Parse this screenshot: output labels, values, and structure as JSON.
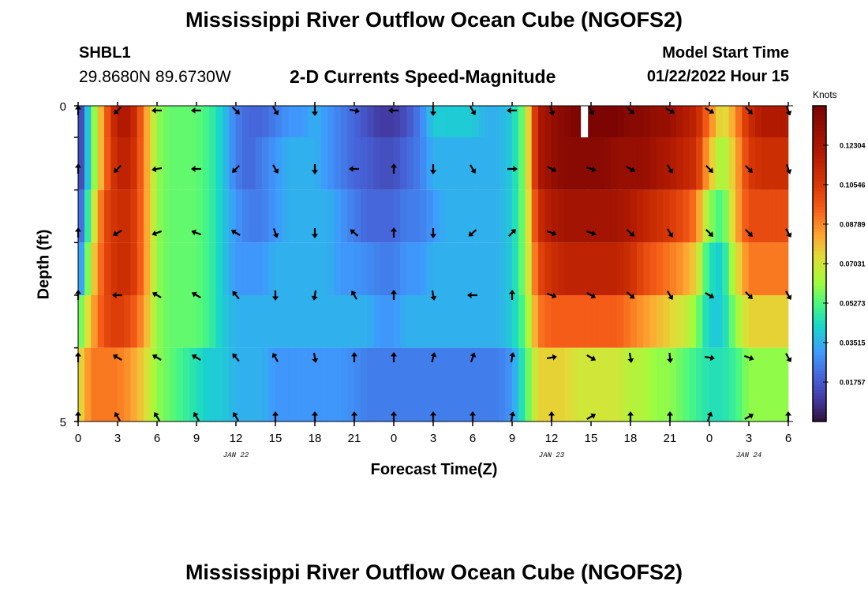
{
  "titles": {
    "top": "Mississippi River Outflow Ocean Cube (NGOFS2)",
    "bottom": "Mississippi River Outflow Ocean Cube (NGOFS2)"
  },
  "station": {
    "name": "SHBL1",
    "coords": "29.8680N  89.6730W"
  },
  "subtitle": "2-D Currents Speed-Magnitude",
  "model": {
    "label": "Model Start Time",
    "time": "01/22/2022 Hour 15"
  },
  "chart_data": {
    "type": "heatmap",
    "title": "2-D Currents Speed-Magnitude",
    "xlabel": "Forecast Time(Z)",
    "ylabel": "Depth (ft)",
    "x_ticks": [
      "0",
      "3",
      "6",
      "9",
      "12",
      "15",
      "18",
      "21",
      "0",
      "3",
      "6",
      "9",
      "12",
      "15",
      "18",
      "21",
      "0",
      "3",
      "6"
    ],
    "x_tick_hours": [
      0,
      3,
      6,
      9,
      12,
      15,
      18,
      21,
      24,
      27,
      30,
      33,
      36,
      39,
      42,
      45,
      48,
      51,
      54
    ],
    "xlim": [
      0,
      54
    ],
    "date_labels": [
      {
        "text": "JAN 22",
        "hour": 12
      },
      {
        "text": "JAN 23",
        "hour": 36
      },
      {
        "text": "JAN 24",
        "hour": 51
      }
    ],
    "y_ticks": [
      "0",
      "5"
    ],
    "ylim": [
      0,
      5
    ],
    "n_layers": 6,
    "colorbar": {
      "unit": "Knots",
      "min": 0,
      "max": 0.1406,
      "tick_labels": [
        "0.12304",
        "0.10546",
        "0.08789",
        "0.07031",
        "0.05273",
        "0.03515",
        "0.01757"
      ],
      "tick_values": [
        0.12304,
        0.10546,
        0.08789,
        0.07031,
        0.05273,
        0.03515,
        0.01757
      ]
    },
    "profiles": {
      "hours": [
        0,
        1,
        2,
        3,
        4,
        5,
        6,
        7,
        8,
        9,
        10,
        11,
        12,
        13,
        14,
        15,
        16,
        17,
        18,
        19,
        20,
        21,
        22,
        23,
        24,
        25,
        26,
        27,
        28,
        29,
        30,
        31,
        32,
        33,
        34,
        35,
        36,
        37,
        38,
        39,
        40,
        41,
        42,
        43,
        44,
        45,
        46,
        47,
        48,
        49,
        50,
        51,
        52,
        53,
        54
      ],
      "layers": [
        [
          0.003,
          0.05,
          0.09,
          0.12,
          0.12,
          0.09,
          0.06,
          0.055,
          0.055,
          0.055,
          0.05,
          0.04,
          0.025,
          0.02,
          0.02,
          0.025,
          0.03,
          0.03,
          0.035,
          0.03,
          0.025,
          0.02,
          0.015,
          0.01,
          0.01,
          0.015,
          0.025,
          0.04,
          0.04,
          0.04,
          0.04,
          0.035,
          0.035,
          0.04,
          0.06,
          0.12,
          0.13,
          0.135,
          0.14,
          0.14,
          0.14,
          0.14,
          0.135,
          0.135,
          0.13,
          0.13,
          0.12,
          0.115,
          0.09,
          0.07,
          0.085,
          0.11,
          0.12,
          0.12,
          0.12
        ],
        [
          0.003,
          0.05,
          0.09,
          0.115,
          0.115,
          0.09,
          0.06,
          0.055,
          0.055,
          0.055,
          0.05,
          0.04,
          0.025,
          0.02,
          0.025,
          0.03,
          0.035,
          0.035,
          0.035,
          0.03,
          0.025,
          0.02,
          0.018,
          0.015,
          0.015,
          0.02,
          0.025,
          0.035,
          0.035,
          0.035,
          0.035,
          0.035,
          0.035,
          0.04,
          0.06,
          0.12,
          0.13,
          0.135,
          0.135,
          0.135,
          0.135,
          0.13,
          0.13,
          0.13,
          0.125,
          0.12,
          0.115,
          0.11,
          0.08,
          0.06,
          0.08,
          0.105,
          0.11,
          0.11,
          0.11
        ],
        [
          0.01,
          0.06,
          0.1,
          0.11,
          0.11,
          0.09,
          0.06,
          0.055,
          0.055,
          0.055,
          0.05,
          0.04,
          0.03,
          0.025,
          0.025,
          0.03,
          0.035,
          0.035,
          0.035,
          0.035,
          0.03,
          0.025,
          0.02,
          0.02,
          0.02,
          0.025,
          0.025,
          0.03,
          0.035,
          0.035,
          0.035,
          0.035,
          0.035,
          0.04,
          0.06,
          0.11,
          0.12,
          0.125,
          0.125,
          0.125,
          0.125,
          0.125,
          0.12,
          0.115,
          0.11,
          0.105,
          0.1,
          0.09,
          0.06,
          0.05,
          0.08,
          0.1,
          0.1,
          0.1,
          0.1
        ],
        [
          0.02,
          0.07,
          0.1,
          0.11,
          0.11,
          0.09,
          0.06,
          0.055,
          0.055,
          0.055,
          0.05,
          0.04,
          0.03,
          0.03,
          0.03,
          0.035,
          0.035,
          0.035,
          0.035,
          0.035,
          0.03,
          0.03,
          0.028,
          0.025,
          0.025,
          0.03,
          0.03,
          0.035,
          0.035,
          0.035,
          0.035,
          0.035,
          0.035,
          0.04,
          0.06,
          0.1,
          0.11,
          0.115,
          0.115,
          0.115,
          0.115,
          0.115,
          0.11,
          0.1,
          0.095,
          0.09,
          0.085,
          0.075,
          0.045,
          0.04,
          0.07,
          0.09,
          0.09,
          0.09,
          0.09
        ],
        [
          0.05,
          0.08,
          0.1,
          0.105,
          0.1,
          0.085,
          0.06,
          0.055,
          0.055,
          0.055,
          0.05,
          0.04,
          0.035,
          0.035,
          0.035,
          0.035,
          0.035,
          0.035,
          0.035,
          0.035,
          0.035,
          0.035,
          0.035,
          0.03,
          0.03,
          0.035,
          0.035,
          0.035,
          0.035,
          0.035,
          0.035,
          0.035,
          0.035,
          0.04,
          0.055,
          0.09,
          0.095,
          0.095,
          0.095,
          0.095,
          0.095,
          0.095,
          0.09,
          0.085,
          0.08,
          0.075,
          0.07,
          0.06,
          0.04,
          0.04,
          0.06,
          0.075,
          0.075,
          0.075,
          0.075
        ],
        [
          0.07,
          0.09,
          0.09,
          0.09,
          0.085,
          0.075,
          0.06,
          0.055,
          0.05,
          0.045,
          0.04,
          0.04,
          0.035,
          0.035,
          0.035,
          0.03,
          0.03,
          0.03,
          0.03,
          0.03,
          0.03,
          0.028,
          0.025,
          0.025,
          0.025,
          0.025,
          0.025,
          0.025,
          0.025,
          0.025,
          0.025,
          0.025,
          0.025,
          0.03,
          0.05,
          0.075,
          0.075,
          0.075,
          0.07,
          0.07,
          0.07,
          0.07,
          0.065,
          0.065,
          0.06,
          0.06,
          0.055,
          0.05,
          0.045,
          0.045,
          0.05,
          0.06,
          0.06,
          0.06,
          0.06
        ]
      ]
    },
    "arrows": {
      "hours": [
        0,
        3,
        6,
        9,
        12,
        15,
        18,
        21,
        24,
        27,
        30,
        33,
        36,
        39,
        42,
        45,
        48,
        51,
        54
      ],
      "depths": [
        0,
        1,
        2,
        3,
        4,
        5
      ],
      "directions_deg": [
        [
          0,
          225,
          270,
          270,
          135,
          150,
          180,
          100,
          270,
          180,
          150,
          270,
          160,
          150,
          135,
          120,
          120,
          135,
          160
        ],
        [
          0,
          225,
          260,
          270,
          225,
          150,
          180,
          270,
          0,
          180,
          150,
          90,
          120,
          110,
          120,
          150,
          135,
          135,
          160
        ],
        [
          0,
          240,
          250,
          290,
          300,
          160,
          180,
          310,
          0,
          180,
          230,
          45,
          110,
          110,
          130,
          150,
          135,
          135,
          150
        ],
        [
          0,
          270,
          300,
          300,
          320,
          180,
          190,
          330,
          0,
          170,
          270,
          0,
          110,
          120,
          130,
          150,
          120,
          135,
          150
        ],
        [
          0,
          300,
          300,
          300,
          320,
          330,
          170,
          0,
          0,
          15,
          20,
          10,
          80,
          120,
          170,
          175,
          100,
          110,
          150
        ],
        [
          0,
          330,
          330,
          330,
          330,
          0,
          0,
          0,
          0,
          0,
          0,
          10,
          0,
          60,
          0,
          0,
          20,
          60,
          0
        ]
      ]
    },
    "missing_cell": {
      "hour": 38.5,
      "layer": 0
    }
  }
}
